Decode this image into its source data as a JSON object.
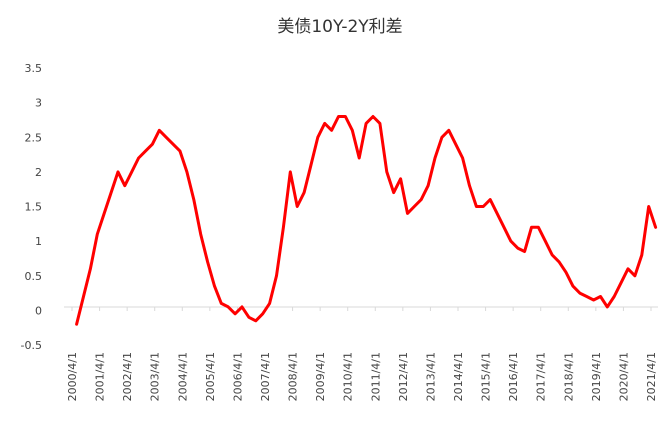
{
  "chart_data": {
    "type": "line",
    "title": "美债10Y-2Y利差",
    "xlabel": "",
    "ylabel": "",
    "ylim": [
      -0.5,
      3.5
    ],
    "y_ticks": [
      "3.5",
      "3",
      "2.5",
      "2",
      "1.5",
      "1",
      "0.5",
      "0",
      "-0.5"
    ],
    "x_ticks": [
      "2000/4/1",
      "2001/4/1",
      "2002/4/1",
      "2003/4/1",
      "2004/4/1",
      "2005/4/1",
      "2006/4/1",
      "2007/4/1",
      "2008/4/1",
      "2009/4/1",
      "2010/4/1",
      "2011/4/1",
      "2012/4/1",
      "2013/4/1",
      "2014/4/1",
      "2015/4/1",
      "2016/4/1",
      "2017/4/1",
      "2018/4/1",
      "2019/4/1",
      "2020/4/1",
      "2021/4/1"
    ],
    "grid": false,
    "line_color": "#ff0000",
    "series": [
      {
        "x": [
          "2000/6/1",
          "2000/9/1",
          "2000/12/1",
          "2001/3/1",
          "2001/6/1",
          "2001/9/1",
          "2001/12/1",
          "2002/3/1",
          "2002/6/1",
          "2002/9/1",
          "2002/12/1",
          "2003/3/1",
          "2003/6/1",
          "2003/9/1",
          "2003/12/1",
          "2004/3/1",
          "2004/6/1",
          "2004/9/1",
          "2004/12/1",
          "2005/3/1",
          "2005/6/1",
          "2005/9/1",
          "2005/12/1",
          "2006/3/1",
          "2006/6/1",
          "2006/9/1",
          "2006/12/1",
          "2007/3/1",
          "2007/6/1",
          "2007/9/1",
          "2007/12/1",
          "2008/3/1",
          "2008/6/1",
          "2008/9/1",
          "2008/12/1",
          "2009/3/1",
          "2009/6/1",
          "2009/9/1",
          "2009/12/1",
          "2010/3/1",
          "2010/6/1",
          "2010/9/1",
          "2010/12/1",
          "2011/3/1",
          "2011/6/1",
          "2011/9/1",
          "2011/12/1",
          "2012/3/1",
          "2012/6/1",
          "2012/9/1",
          "2012/12/1",
          "2013/3/1",
          "2013/6/1",
          "2013/9/1",
          "2013/12/1",
          "2014/3/1",
          "2014/6/1",
          "2014/9/1",
          "2014/12/1",
          "2015/3/1",
          "2015/6/1",
          "2015/9/1",
          "2015/12/1",
          "2016/3/1",
          "2016/6/1",
          "2016/9/1",
          "2016/12/1",
          "2017/3/1",
          "2017/6/1",
          "2017/9/1",
          "2017/12/1",
          "2018/3/1",
          "2018/6/1",
          "2018/9/1",
          "2018/12/1",
          "2019/3/1",
          "2019/6/1",
          "2019/9/1",
          "2019/12/1",
          "2020/3/1",
          "2020/6/1",
          "2020/9/1",
          "2020/12/1",
          "2021/3/1",
          "2021/6/1"
        ],
        "values": [
          -0.2,
          0.2,
          0.6,
          1.1,
          1.4,
          1.7,
          2.0,
          1.8,
          2.0,
          2.2,
          2.3,
          2.4,
          2.6,
          2.5,
          2.4,
          2.3,
          2.0,
          1.6,
          1.1,
          0.7,
          0.35,
          0.1,
          0.05,
          -0.05,
          0.05,
          -0.1,
          -0.15,
          -0.05,
          0.1,
          0.5,
          1.2,
          2.0,
          1.5,
          1.7,
          2.1,
          2.5,
          2.7,
          2.6,
          2.8,
          2.8,
          2.6,
          2.2,
          2.7,
          2.8,
          2.7,
          2.0,
          1.7,
          1.9,
          1.4,
          1.5,
          1.6,
          1.8,
          2.2,
          2.5,
          2.6,
          2.4,
          2.2,
          1.8,
          1.5,
          1.5,
          1.6,
          1.4,
          1.2,
          1.0,
          0.9,
          0.85,
          1.2,
          1.2,
          1.0,
          0.8,
          0.7,
          0.55,
          0.35,
          0.25,
          0.2,
          0.15,
          0.2,
          0.05,
          0.2,
          0.4,
          0.6,
          0.5,
          0.8,
          1.5,
          1.2
        ]
      }
    ]
  }
}
